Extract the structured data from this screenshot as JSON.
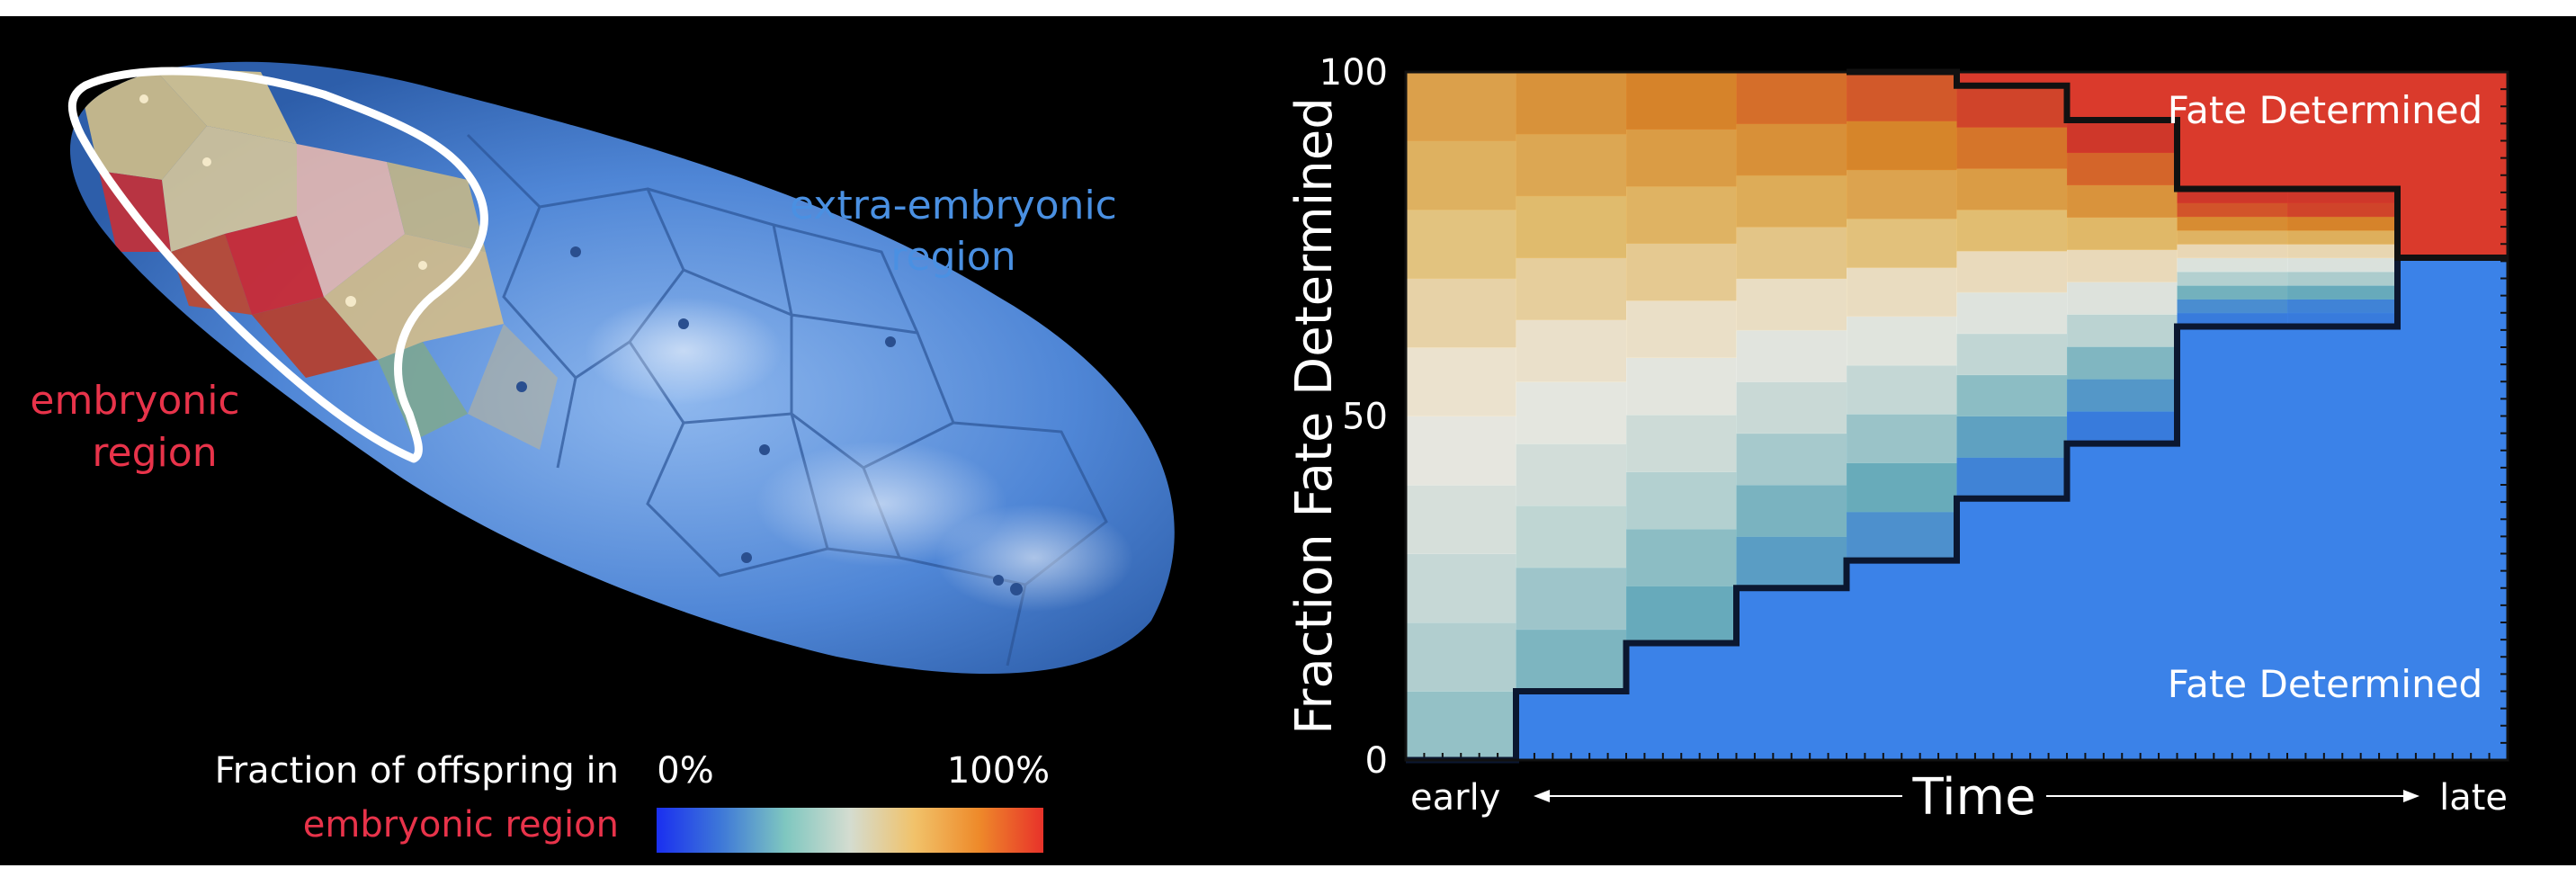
{
  "embryo": {
    "embryonic_label": [
      "embryonic",
      "region"
    ],
    "extra_label": [
      "extra-embryonic",
      "region"
    ],
    "colors": {
      "embryonic": "#e8334a",
      "extra": "#4a90e2"
    }
  },
  "colorbar": {
    "caption_line1": "Fraction of offspring in",
    "caption_line2": "embryonic region",
    "min_label": "0%",
    "max_label": "100%",
    "stops": [
      "#1a2ff0",
      "#3e78d8",
      "#7fc7c0",
      "#d4dcd0",
      "#f1c26a",
      "#ee8a2a",
      "#e8322a"
    ]
  },
  "chart_data": {
    "type": "area",
    "ylabel": "Fraction Fate Determined",
    "yticks": [
      0,
      50,
      100
    ],
    "ylim": [
      0,
      100
    ],
    "xlabel": "Time",
    "xlabel_left": "early",
    "xlabel_right": "late",
    "time_steps": 10,
    "lower_boundary": [
      0,
      10,
      17,
      25,
      29,
      38,
      46,
      63,
      63,
      73
    ],
    "upper_boundary": [
      100,
      100,
      100,
      100,
      100,
      98,
      93,
      83,
      83,
      73
    ],
    "lower_region_label": "Fate Determined",
    "upper_region_label": "Fate Determined",
    "lower_color": "#3b82e8",
    "upper_color": "#da3a2c"
  }
}
